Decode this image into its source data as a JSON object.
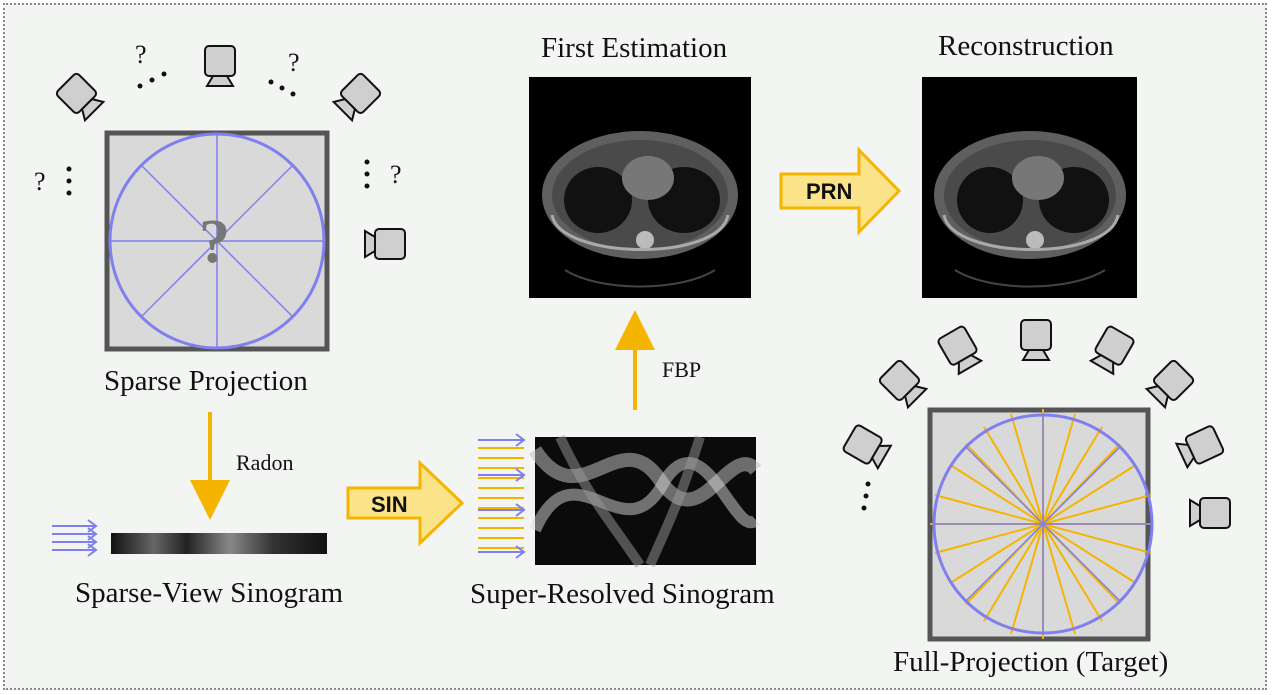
{
  "captions": {
    "sparse_projection": "Sparse Projection",
    "sparse_view_sinogram": "Sparse-View Sinogram",
    "super_resolved_sinogram": "Super-Resolved Sinogram",
    "first_estimation": "First Estimation",
    "reconstruction": "Reconstruction",
    "full_projection": "Full-Projection (Target)"
  },
  "arrows": {
    "radon": "Radon",
    "fbp": "FBP",
    "sin": "SIN",
    "prn": "PRN"
  },
  "unknown_marks": {
    "question": "?",
    "center_question": "?"
  },
  "colors": {
    "accent_orange": "#f5b400",
    "block_arrow_fill": "#fbe38a",
    "ray_blue": "#7f7ff0",
    "frame_gray": "#555555",
    "panel_gray": "#d9d9d9",
    "camera_gray": "#cfcfcf"
  },
  "icons": {
    "camera": "camera-icon",
    "ellipsis": "ellipsis-icon"
  }
}
